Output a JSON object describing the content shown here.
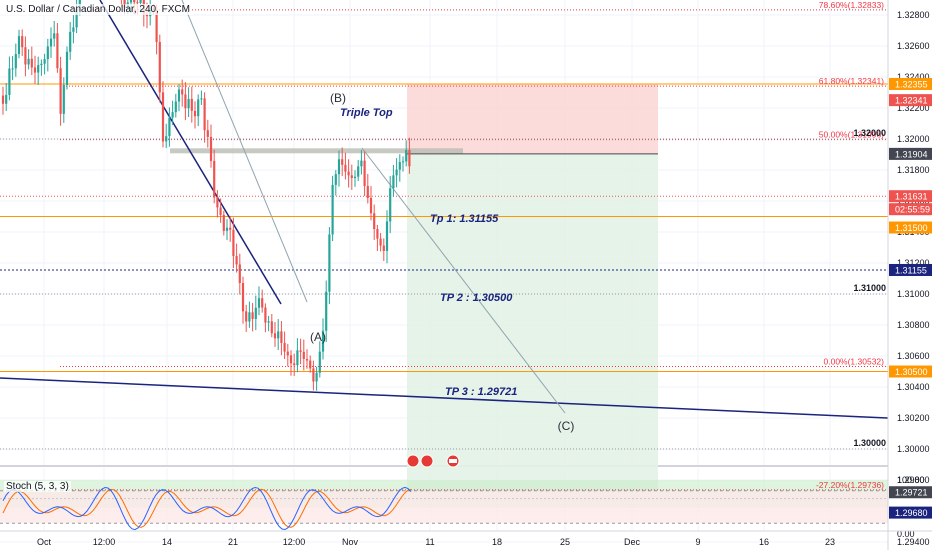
{
  "header": {
    "title": "U.S. Dollar / Canadian Dollar, 240, FXCM",
    "indicator": "Stoch (5, 3, 3)"
  },
  "chart_data": {
    "type": "candlestick",
    "symbol": "USDCAD",
    "timeframe": "240",
    "ylim": [
      1.29,
      1.33
    ],
    "x_ticks": [
      "Oct",
      "12:00",
      "14",
      "21",
      "12:00",
      "Nov",
      "11",
      "18",
      "25",
      "Dec",
      "9",
      "16",
      "23"
    ],
    "y_ticks": [
      "1.32800",
      "1.32600",
      "1.32400",
      "1.32200",
      "1.32000",
      "1.31800",
      "1.31600",
      "1.31400",
      "1.31200",
      "1.31000",
      "1.30800",
      "1.30600",
      "1.30400",
      "1.30200",
      "1.30000",
      "1.29800",
      "1.29600",
      "1.29400"
    ],
    "price_labels": [
      {
        "text": "1.32355",
        "kind": "orange"
      },
      {
        "text": "1.32341",
        "kind": "red"
      },
      {
        "text": "1.31904",
        "kind": "gray"
      },
      {
        "text": "1.31631",
        "kind": "red"
      },
      {
        "text": "02:55:59",
        "kind": "red"
      },
      {
        "text": "1.31500",
        "kind": "orange"
      },
      {
        "text": "1.31155",
        "kind": "navy"
      },
      {
        "text": "1.30500",
        "kind": "orange"
      },
      {
        "text": "1.29721",
        "kind": "gray"
      },
      {
        "text": "1.29680",
        "kind": "navy"
      }
    ],
    "fib_levels": [
      {
        "label": "78.60%(1.32833)",
        "value": 1.32833
      },
      {
        "label": "61.80%(1.32341)",
        "value": 1.32341
      },
      {
        "label": "50.00%(1.31996)",
        "value": 1.31996
      },
      {
        "label": "0.00%(1.30532)",
        "value": 1.30532
      },
      {
        "label": "-27.20%(1.29736)",
        "value": 1.29736
      }
    ],
    "horizontal_lines": [
      {
        "label": "1.32000",
        "value": 1.32
      },
      {
        "label": "1.31000",
        "value": 1.31
      },
      {
        "label": "1.30000",
        "value": 1.3
      }
    ],
    "orange_levels": [
      1.32355,
      1.315,
      1.305
    ],
    "annotations": {
      "wave_a": "(A)",
      "wave_b": "(B)",
      "wave_c": "(C)",
      "pattern": "Triple Top",
      "tp1": "Tp 1: 1.31155",
      "tp2": "TP 2 : 1.30500",
      "tp3": "TP 3 : 1.29721"
    },
    "stochastic": {
      "ylim": [
        0,
        100
      ],
      "y_ticks": [
        "100.00",
        "0.00"
      ],
      "upper_band": 80,
      "lower_band": 20
    },
    "colors": {
      "up": "#26a69a",
      "down": "#ef5350",
      "trend": "#1a237e",
      "fib": "#f23645",
      "level": "#ff9800",
      "stop_zone": "#fbd5d5",
      "target_zone": "#e3f2e5",
      "stoch_k": "#2962ff",
      "stoch_d": "#ff6d00"
    }
  }
}
